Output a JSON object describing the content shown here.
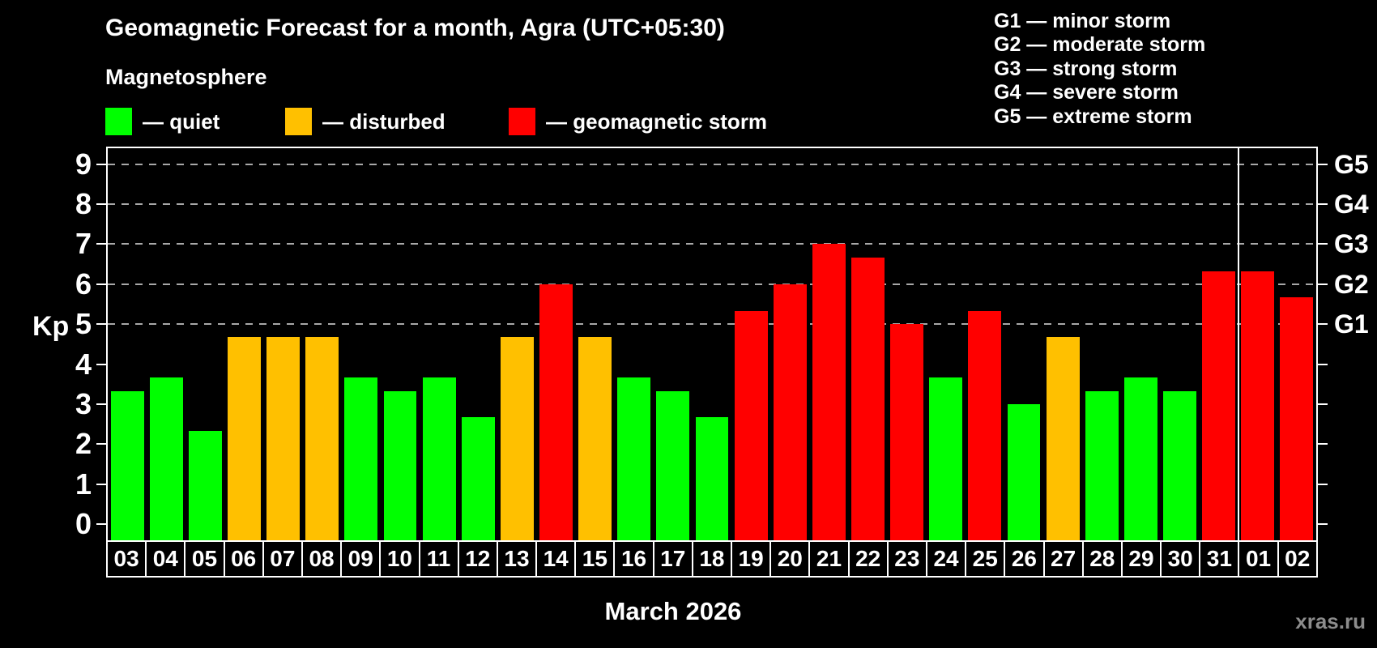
{
  "header": {
    "title": "Geomagnetic Forecast for a month, Agra (UTC+05:30)",
    "subtitle": "Magnetosphere"
  },
  "legend": {
    "items": [
      {
        "name": "quiet",
        "label": "— quiet",
        "color": "#00ff00"
      },
      {
        "name": "disturbed",
        "label": "— disturbed",
        "color": "#ffc000"
      },
      {
        "name": "storm",
        "label": "— geomagnetic storm",
        "color": "#ff0000"
      }
    ]
  },
  "g_legend": {
    "items": [
      "G1 — minor storm",
      "G2 — moderate storm",
      "G3 — strong storm",
      "G4 — severe storm",
      "G5 — extreme storm"
    ]
  },
  "chart_data": {
    "type": "bar",
    "title": "Geomagnetic Forecast for a month, Agra (UTC+05:30)",
    "xlabel": "March 2026",
    "ylabel": "Kp",
    "ylim": [
      0,
      9
    ],
    "y_ticks": [
      0,
      1,
      2,
      3,
      4,
      5,
      6,
      7,
      8,
      9
    ],
    "gridlines_at": [
      5,
      6,
      7,
      8,
      9
    ],
    "grid": "dashed horizontal at storm levels only",
    "legend_position": "top-left",
    "right_axis": [
      {
        "kp": 5,
        "label": "G1"
      },
      {
        "kp": 6,
        "label": "G2"
      },
      {
        "kp": 7,
        "label": "G3"
      },
      {
        "kp": 8,
        "label": "G4"
      },
      {
        "kp": 9,
        "label": "G5"
      }
    ],
    "categories": [
      "03",
      "04",
      "05",
      "06",
      "07",
      "08",
      "09",
      "10",
      "11",
      "12",
      "13",
      "14",
      "15",
      "16",
      "17",
      "18",
      "19",
      "20",
      "21",
      "22",
      "23",
      "24",
      "25",
      "26",
      "27",
      "28",
      "29",
      "30",
      "31",
      "01",
      "02"
    ],
    "values": [
      3.33,
      3.67,
      2.33,
      4.67,
      4.67,
      4.67,
      3.67,
      3.33,
      3.67,
      2.67,
      4.67,
      6.0,
      4.67,
      3.67,
      3.33,
      2.67,
      5.33,
      6.0,
      7.0,
      6.67,
      5.0,
      3.67,
      5.33,
      3.0,
      4.67,
      3.33,
      3.67,
      3.33,
      6.33,
      6.33,
      5.67
    ],
    "levels": [
      "quiet",
      "quiet",
      "quiet",
      "disturbed",
      "disturbed",
      "disturbed",
      "quiet",
      "quiet",
      "quiet",
      "quiet",
      "disturbed",
      "storm",
      "disturbed",
      "quiet",
      "quiet",
      "quiet",
      "storm",
      "storm",
      "storm",
      "storm",
      "storm",
      "quiet",
      "storm",
      "quiet",
      "disturbed",
      "quiet",
      "quiet",
      "quiet",
      "storm",
      "storm",
      "storm"
    ],
    "level_colors": {
      "quiet": "#00ff00",
      "disturbed": "#ffc000",
      "storm": "#ff0000"
    },
    "month_separator_before": "01"
  },
  "footer": {
    "xlabel": "March 2026",
    "watermark": "xras.ru"
  }
}
